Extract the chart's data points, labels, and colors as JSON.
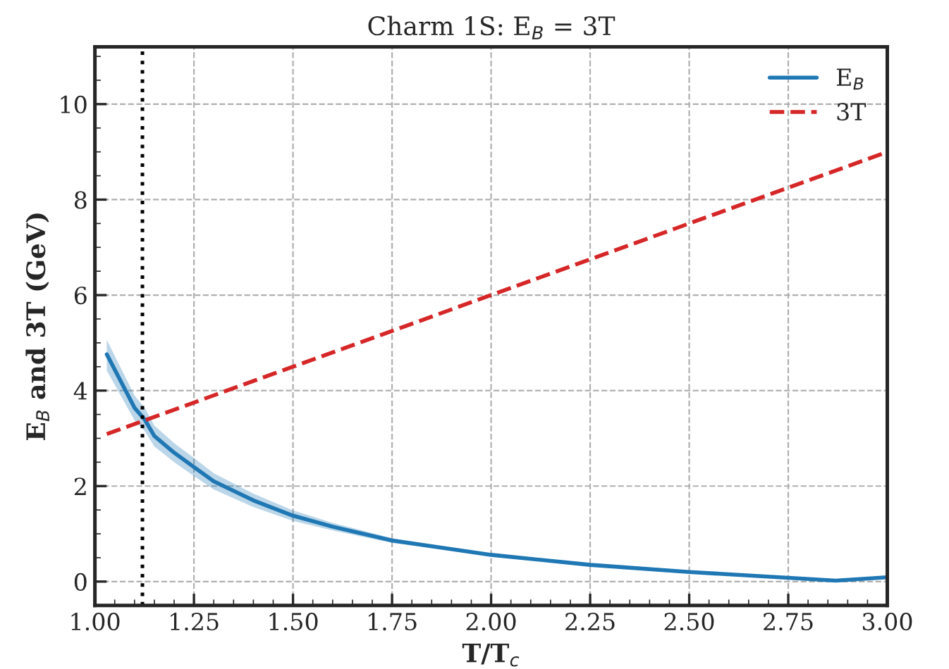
{
  "chart_data": {
    "type": "line",
    "title": "Charm 1S: E$_{B}$ = 3T",
    "xlabel": "T/T$_{c}$",
    "ylabel": "E$_{B}$ and 3T (GeV)",
    "xlim": [
      1.0,
      3.0
    ],
    "xticks": [
      {
        "value": 1.0,
        "label": "1.00"
      },
      1.25,
      {
        "value": 1.5,
        "label": "1.50"
      },
      1.75,
      {
        "value": 2.0,
        "label": "2.00"
      },
      2.25,
      {
        "value": 2.5,
        "label": "2.50"
      },
      2.75,
      {
        "value": 3.0,
        "label": "3.00"
      }
    ],
    "ylim": [
      -0.5,
      11.2
    ],
    "yticks": [
      0,
      2,
      4,
      6,
      8,
      10
    ],
    "grid": true,
    "legend": "top right",
    "marker": "none",
    "series": [
      {
        "name": "E$_{B}$",
        "color": "#1f77b4",
        "line_style": "solid",
        "x": [
          1.03,
          1.1,
          1.126,
          1.15,
          1.2,
          1.25,
          1.3,
          1.4,
          1.5,
          1.6,
          1.75,
          2.0,
          2.25,
          2.5,
          2.75,
          2.87,
          3.0
        ],
        "values": [
          4.76,
          3.64,
          3.39,
          3.05,
          2.7,
          2.4,
          2.1,
          1.7,
          1.38,
          1.15,
          0.86,
          0.56,
          0.35,
          0.2,
          0.08,
          0.02,
          0.09
        ],
        "lower": [
          4.42,
          3.38,
          3.15,
          2.83,
          2.5,
          2.21,
          1.93,
          1.56,
          1.27,
          1.07,
          0.81,
          0.54,
          0.35,
          0.2,
          0.08,
          0.02,
          0.09
        ],
        "upper": [
          5.06,
          3.9,
          3.63,
          3.27,
          2.9,
          2.59,
          2.27,
          1.84,
          1.49,
          1.23,
          0.91,
          0.58,
          0.35,
          0.2,
          0.08,
          0.02,
          0.09
        ]
      },
      {
        "name": "3T",
        "color": "#d62728",
        "line_style": "dashed",
        "x": [
          1.03,
          3.0
        ],
        "values": [
          3.09,
          9.0
        ]
      }
    ],
    "ref_lines": [
      {
        "axis": "x",
        "value": 1.12,
        "label": null,
        "color": "#000000",
        "line_style": "dotted"
      }
    ]
  }
}
